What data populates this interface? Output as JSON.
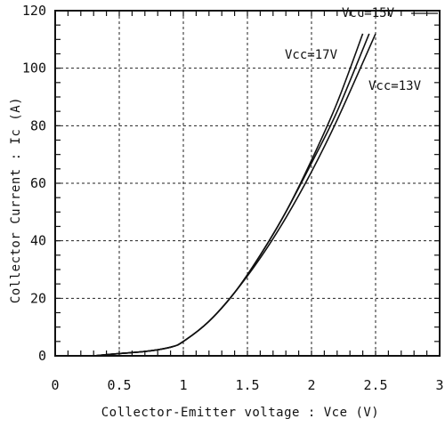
{
  "chart_data": {
    "type": "line",
    "xlabel": "Collector-Emitter voltage : Vce  (V)",
    "ylabel": "Collector Current : Ic  (A)",
    "xlim": [
      0,
      3
    ],
    "ylim": [
      0,
      120
    ],
    "x_ticks": [
      0,
      0.5,
      1,
      1.5,
      2,
      2.5,
      3
    ],
    "x_tick_labels": [
      "0",
      "0.5",
      "1",
      "1.5",
      "2",
      "2.5",
      "3"
    ],
    "y_ticks": [
      0,
      20,
      40,
      60,
      80,
      100,
      120
    ],
    "y_tick_labels": [
      "0",
      "20",
      "40",
      "60",
      "80",
      "100",
      "120"
    ],
    "grid": true,
    "series": [
      {
        "name": "Vcc=17V",
        "x": [
          0.3,
          0.5,
          0.7,
          0.9,
          1.0,
          1.2,
          1.4,
          1.6,
          1.8,
          2.0,
          2.2,
          2.4
        ],
        "y": [
          0,
          0.8,
          1.5,
          3,
          5,
          12,
          22,
          35,
          50,
          68,
          88,
          112
        ]
      },
      {
        "name": "Vcc=15V",
        "x": [
          0.3,
          0.5,
          0.7,
          0.9,
          1.0,
          1.2,
          1.4,
          1.6,
          1.8,
          2.0,
          2.2,
          2.45
        ],
        "y": [
          0,
          0.8,
          1.5,
          3,
          5,
          12,
          22,
          35,
          50,
          67,
          85,
          112
        ]
      },
      {
        "name": "Vcc=13V",
        "x": [
          0.3,
          0.5,
          0.7,
          0.9,
          1.0,
          1.2,
          1.4,
          1.6,
          1.8,
          2.0,
          2.2,
          2.5
        ],
        "y": [
          0,
          0.8,
          1.5,
          3,
          5,
          12,
          22,
          34,
          48,
          64,
          82,
          112
        ]
      }
    ]
  }
}
